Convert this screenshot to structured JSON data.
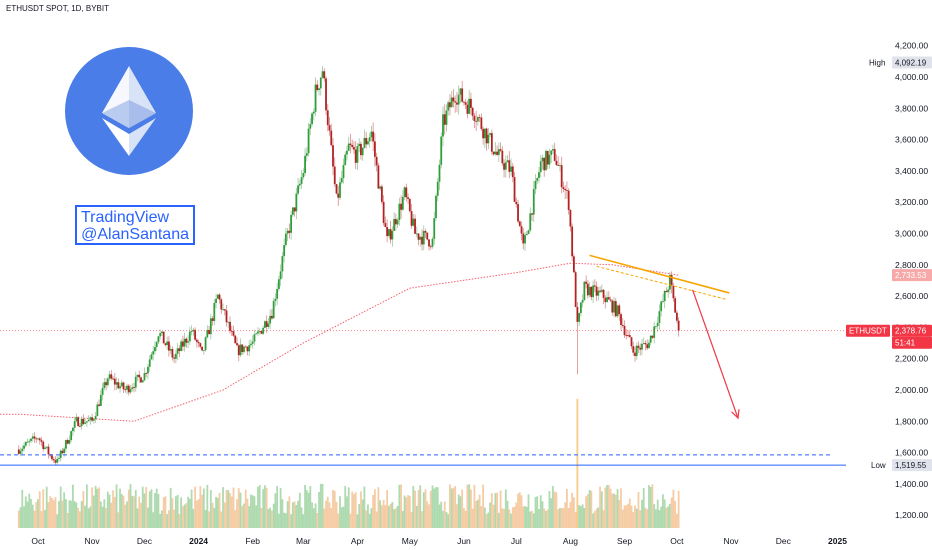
{
  "header": {
    "title": "ETHUSDT SPOT, 1D, BYBIT"
  },
  "watermark": {
    "line1": "TradingView",
    "line2": "@AlanSantana",
    "logo": "ethereum-logo-icon"
  },
  "colors": {
    "up": "#26a69a",
    "down": "#ef5350",
    "trend": "#f7a600",
    "arrow": "#f23645",
    "sma": "#f23645",
    "low_line": "#2962ff",
    "logo_bg": "#4a7de8"
  },
  "chart_data": {
    "type": "candlestick",
    "title": "ETHUSDT SPOT, 1D, BYBIT",
    "symbol": "ETHUSDT",
    "ylim": [
      1150,
      4300
    ],
    "y_ticks": [
      1200,
      1400,
      1600,
      1800,
      2000,
      2200,
      2400,
      2600,
      2800,
      3000,
      3200,
      3400,
      3600,
      3800,
      4000,
      4200
    ],
    "y_tick_labels": [
      "1,200.00",
      "1,400.00",
      "1,600.00",
      "1,800.00",
      "2,000.00",
      "2,200.00",
      "2,400.00",
      "2,600.00",
      "2,800.00",
      "3,000.00",
      "3,200.00",
      "3,400.00",
      "3,600.00",
      "3,800.00",
      "4,000.00",
      "4,200.00"
    ],
    "x_ticks": [
      "Oct",
      "Nov",
      "Dec",
      "2024",
      "Feb",
      "Mar",
      "Apr",
      "May",
      "Jun",
      "Jul",
      "Aug",
      "Sep",
      "Oct",
      "Nov",
      "Dec",
      "2025"
    ],
    "x_tick_dates": [
      "2023-10-01",
      "2023-11-01",
      "2023-12-01",
      "2024-01-01",
      "2024-02-01",
      "2024-03-01",
      "2024-04-01",
      "2024-05-01",
      "2024-06-01",
      "2024-07-01",
      "2024-08-01",
      "2024-09-01",
      "2024-10-01",
      "2024-11-01",
      "2024-12-01",
      "2025-01-01"
    ],
    "start_date": "2023-09-20",
    "end_date": "2024-10-02",
    "price_anchors": [
      [
        "2023-09-20",
        1620
      ],
      [
        "2023-10-01",
        1700
      ],
      [
        "2023-10-08",
        1580
      ],
      [
        "2023-10-12",
        1540
      ],
      [
        "2023-10-23",
        1800
      ],
      [
        "2023-11-01",
        1800
      ],
      [
        "2023-11-10",
        2080
      ],
      [
        "2023-11-20",
        2000
      ],
      [
        "2023-12-01",
        2100
      ],
      [
        "2023-12-09",
        2370
      ],
      [
        "2023-12-18",
        2200
      ],
      [
        "2023-12-28",
        2380
      ],
      [
        "2024-01-03",
        2220
      ],
      [
        "2024-01-12",
        2600
      ],
      [
        "2024-01-23",
        2250
      ],
      [
        "2024-02-01",
        2300
      ],
      [
        "2024-02-12",
        2500
      ],
      [
        "2024-02-20",
        2950
      ],
      [
        "2024-03-01",
        3400
      ],
      [
        "2024-03-08",
        3900
      ],
      [
        "2024-03-12",
        4050
      ],
      [
        "2024-03-20",
        3200
      ],
      [
        "2024-03-27",
        3550
      ],
      [
        "2024-04-01",
        3500
      ],
      [
        "2024-04-09",
        3650
      ],
      [
        "2024-04-18",
        2950
      ],
      [
        "2024-04-28",
        3250
      ],
      [
        "2024-05-04",
        3000
      ],
      [
        "2024-05-14",
        2950
      ],
      [
        "2024-05-20",
        3700
      ],
      [
        "2024-05-27",
        3900
      ],
      [
        "2024-06-06",
        3800
      ],
      [
        "2024-06-20",
        3500
      ],
      [
        "2024-06-28",
        3400
      ],
      [
        "2024-07-05",
        2900
      ],
      [
        "2024-07-15",
        3450
      ],
      [
        "2024-07-23",
        3500
      ],
      [
        "2024-07-31",
        3200
      ],
      [
        "2024-08-05",
        2400
      ],
      [
        "2024-08-09",
        2650
      ],
      [
        "2024-08-20",
        2600
      ],
      [
        "2024-08-28",
        2500
      ],
      [
        "2024-09-06",
        2250
      ],
      [
        "2024-09-15",
        2300
      ],
      [
        "2024-09-27",
        2700
      ],
      [
        "2024-10-02",
        2378.76
      ]
    ],
    "sma": [
      [
        "2023-09-20",
        1845
      ],
      [
        "2023-11-25",
        1800
      ],
      [
        "2024-01-15",
        2000
      ],
      [
        "2024-03-01",
        2300
      ],
      [
        "2024-05-01",
        2650
      ],
      [
        "2024-07-01",
        2750
      ],
      [
        "2024-08-01",
        2810
      ],
      [
        "2024-08-25",
        2800
      ],
      [
        "2024-10-02",
        2733.53
      ]
    ],
    "trendline": [
      [
        "2024-08-12",
        2860
      ],
      [
        "2024-10-31",
        2620
      ]
    ],
    "trendline_dashed": [
      [
        "2024-08-16",
        2790
      ],
      [
        "2024-10-29",
        2580
      ]
    ],
    "arrow": [
      [
        "2024-10-10",
        2640
      ],
      [
        "2024-11-05",
        1820
      ]
    ],
    "high_line": 4092.19,
    "low_line": 1519.55,
    "dashed_level": 1585,
    "volume": {
      "ylim": [
        0,
        100
      ],
      "spike_date": "2024-08-05",
      "spike_value": 100
    },
    "labels": {
      "high": {
        "tag": "High",
        "value": "4,092.19"
      },
      "low": {
        "tag": "Low",
        "value": "1,519.55"
      },
      "last": {
        "tag": "ETHUSDT",
        "value": "2,378.76",
        "countdown": "51:41"
      },
      "sma": {
        "value": "2,733.53"
      }
    }
  }
}
